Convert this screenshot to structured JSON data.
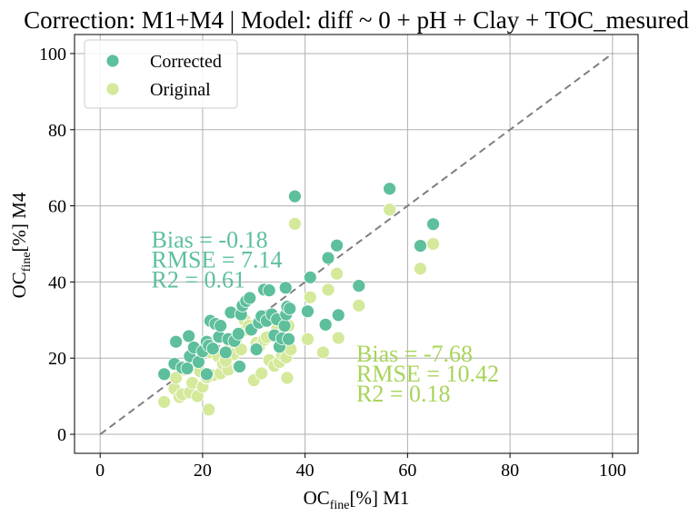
{
  "chart_data": {
    "type": "scatter",
    "title": "Correction: M1+M4 | Model: diff ~ 0 + pH + Clay + TOC_mesured",
    "xlabel": {
      "main": "OC",
      "sub": "fine",
      "rest": "[%] M1"
    },
    "ylabel": {
      "main": "OC",
      "sub": "fine",
      "rest": "[%] M4"
    },
    "xlim": [
      -5,
      105
    ],
    "ylim": [
      -5,
      105
    ],
    "xticks": [
      0,
      20,
      40,
      60,
      80,
      100
    ],
    "yticks": [
      0,
      20,
      40,
      60,
      80,
      100
    ],
    "grid": true,
    "legend_position": "top-left",
    "reference_line": {
      "from": [
        0,
        0
      ],
      "to": [
        100,
        100
      ],
      "style": "dashed",
      "color": "#7f7f7f"
    },
    "series": [
      {
        "name": "Corrected",
        "color": "#5dbf9b",
        "points": [
          [
            12.5,
            15.8
          ],
          [
            14.5,
            18.5
          ],
          [
            14.8,
            24.3
          ],
          [
            16.0,
            17.5
          ],
          [
            17.0,
            17.3
          ],
          [
            17.3,
            25.8
          ],
          [
            17.5,
            20.5
          ],
          [
            18.3,
            22.8
          ],
          [
            19.2,
            19.0
          ],
          [
            20.0,
            21.8
          ],
          [
            20.8,
            24.3
          ],
          [
            21.2,
            23.3
          ],
          [
            21.5,
            29.8
          ],
          [
            22.5,
            29.0
          ],
          [
            23.2,
            25.6
          ],
          [
            23.5,
            28.5
          ],
          [
            25.0,
            25.0
          ],
          [
            25.5,
            32.0
          ],
          [
            26.2,
            24.5
          ],
          [
            27.0,
            26.4
          ],
          [
            27.5,
            31.5
          ],
          [
            27.8,
            33.8
          ],
          [
            28.5,
            35.0
          ],
          [
            29.2,
            35.8
          ],
          [
            29.5,
            27.5
          ],
          [
            30.5,
            22.3
          ],
          [
            31.0,
            29.3
          ],
          [
            31.5,
            31.0
          ],
          [
            32.0,
            38.0
          ],
          [
            32.5,
            29.8
          ],
          [
            33.0,
            37.8
          ],
          [
            33.5,
            31.5
          ],
          [
            34.0,
            26.0
          ],
          [
            34.5,
            30.2
          ],
          [
            35.0,
            23.0
          ],
          [
            35.5,
            25.2
          ],
          [
            36.0,
            28.5
          ],
          [
            36.2,
            38.5
          ],
          [
            36.3,
            31.5
          ],
          [
            36.5,
            33.5
          ],
          [
            36.8,
            25.0
          ],
          [
            37.0,
            33.0
          ],
          [
            38.0,
            62.5
          ],
          [
            40.5,
            32.3
          ],
          [
            41.0,
            41.2
          ],
          [
            44.0,
            28.8
          ],
          [
            44.5,
            46.3
          ],
          [
            46.2,
            49.6
          ],
          [
            46.5,
            31.3
          ],
          [
            50.5,
            39.0
          ],
          [
            56.5,
            64.5
          ],
          [
            62.5,
            49.5
          ],
          [
            65.0,
            55.2
          ],
          [
            20.8,
            15.8
          ],
          [
            27.2,
            17.8
          ],
          [
            24.5,
            21.5
          ],
          [
            22.0,
            22.5
          ]
        ]
      },
      {
        "name": "Original",
        "color": "#d4e99a",
        "points": [
          [
            12.5,
            8.5
          ],
          [
            14.5,
            12.0
          ],
          [
            14.8,
            14.8
          ],
          [
            15.5,
            9.8
          ],
          [
            16.0,
            10.5
          ],
          [
            16.5,
            17.0
          ],
          [
            17.5,
            11.0
          ],
          [
            18.0,
            13.5
          ],
          [
            19.0,
            10.0
          ],
          [
            19.5,
            16.5
          ],
          [
            20.0,
            12.5
          ],
          [
            20.8,
            14.8
          ],
          [
            21.2,
            6.5
          ],
          [
            21.5,
            21.5
          ],
          [
            22.0,
            15.5
          ],
          [
            23.0,
            20.5
          ],
          [
            23.5,
            16.0
          ],
          [
            24.0,
            18.5
          ],
          [
            25.0,
            17.0
          ],
          [
            25.5,
            23.5
          ],
          [
            26.0,
            21.0
          ],
          [
            26.5,
            24.8
          ],
          [
            27.0,
            17.8
          ],
          [
            27.5,
            22.3
          ],
          [
            28.2,
            30.0
          ],
          [
            28.5,
            27.5
          ],
          [
            29.0,
            28.5
          ],
          [
            30.0,
            14.2
          ],
          [
            30.5,
            24.0
          ],
          [
            31.0,
            23.0
          ],
          [
            31.5,
            16.0
          ],
          [
            32.0,
            24.8
          ],
          [
            32.5,
            25.5
          ],
          [
            33.0,
            19.5
          ],
          [
            33.5,
            30.5
          ],
          [
            34.0,
            18.0
          ],
          [
            34.5,
            27.5
          ],
          [
            35.0,
            19.0
          ],
          [
            35.5,
            21.0
          ],
          [
            36.0,
            24.0
          ],
          [
            36.3,
            20.2
          ],
          [
            36.5,
            14.8
          ],
          [
            36.8,
            28.5
          ],
          [
            37.2,
            22.3
          ],
          [
            38.0,
            55.3
          ],
          [
            40.5,
            25.0
          ],
          [
            41.0,
            36.0
          ],
          [
            43.5,
            21.5
          ],
          [
            44.5,
            38.0
          ],
          [
            46.2,
            42.2
          ],
          [
            46.5,
            25.3
          ],
          [
            50.5,
            33.8
          ],
          [
            56.5,
            59.0
          ],
          [
            62.5,
            43.5
          ],
          [
            65.0,
            50.0
          ],
          [
            20.8,
            15.0
          ],
          [
            24.5,
            19.3
          ]
        ]
      }
    ],
    "annotations": [
      {
        "lines": [
          "Bias = -0.18",
          "RMSE = 7.14",
          "R2 = 0.61"
        ],
        "color": "#5dbf9b",
        "anchor": [
          10,
          51
        ]
      },
      {
        "lines": [
          "Bias = -7.68",
          "RMSE = 10.42",
          "R2 = 0.18"
        ],
        "color": "#a8d45a",
        "anchor": [
          50,
          21
        ]
      }
    ]
  }
}
